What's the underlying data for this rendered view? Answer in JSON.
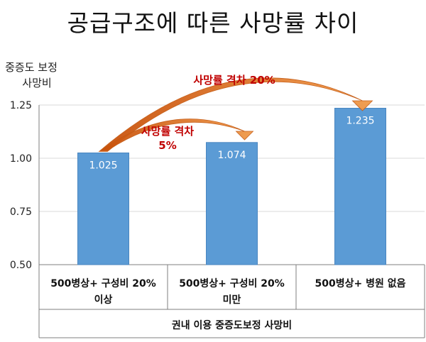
{
  "chart_data": {
    "type": "bar",
    "title": "공급구조에 따른 사망률 차이",
    "ylabel": [
      "중증도 보정",
      "사망비"
    ],
    "xlabel": "권내 이용 중증도보정 사망비",
    "categories": [
      [
        "500병상+ 구성비 20%",
        "이상"
      ],
      [
        "500병상+ 구성비 20%",
        "미만"
      ],
      [
        "500병상+ 병원 없음"
      ]
    ],
    "values": [
      1.025,
      1.074,
      1.235
    ],
    "value_labels": [
      "1.025",
      "1.074",
      "1.235"
    ],
    "ylim": [
      0.5,
      1.25
    ],
    "yticks": [
      0.5,
      0.75,
      1.0,
      1.25
    ],
    "ytick_labels": [
      "0.50",
      "0.75",
      "1.00",
      "1.25"
    ],
    "grid": true,
    "annotations": [
      {
        "lines": [
          "사망률 격차",
          "5%"
        ],
        "from": 0,
        "to": 1
      },
      {
        "lines": [
          "사망률 격차 20%"
        ],
        "from": 0,
        "to": 2
      }
    ],
    "colors": {
      "bar": "#5b9bd5",
      "bar_edge": "#4a86c0",
      "annotation": "#c00000",
      "arrow": "#e8741f",
      "grid": "#d9d9d9",
      "axis": "#7f7f7f"
    }
  }
}
